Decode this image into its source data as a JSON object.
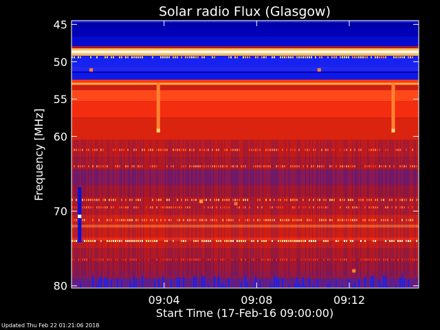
{
  "chart_data": {
    "type": "heatmap",
    "title": "Solar radio Flux (Glasgow)",
    "ylabel": "Frequency [MHz]",
    "xlabel": "Start Time (17-Feb-16 09:00:00)",
    "x_unit": "minutes after 09:00:00",
    "xlim": [
      0,
      15
    ],
    "ylim": [
      44.5,
      80.3
    ],
    "y_inverted": true,
    "y_ticks": [
      {
        "value": 45,
        "label": "45"
      },
      {
        "value": 50,
        "label": "50"
      },
      {
        "value": 55,
        "label": "55"
      },
      {
        "value": 60,
        "label": "60"
      },
      {
        "value": 70,
        "label": "70"
      },
      {
        "value": 80,
        "label": "80"
      }
    ],
    "x_ticks": [
      {
        "value": 4,
        "label": "09:04"
      },
      {
        "value": 8,
        "label": "09:08"
      },
      {
        "value": 12,
        "label": "09:12"
      }
    ],
    "colormap": [
      "#000060",
      "#0000c0",
      "#1a2aff",
      "#5020a0",
      "#a01830",
      "#d02010",
      "#ff3010",
      "#ff8030",
      "#ffe070",
      "#ffffff"
    ],
    "bands": [
      {
        "y0": 44.5,
        "y1": 44.8,
        "level": 0.18
      },
      {
        "y0": 44.8,
        "y1": 45.3,
        "level": 0.08
      },
      {
        "y0": 45.3,
        "y1": 46.6,
        "level": 0.1
      },
      {
        "y0": 46.6,
        "y1": 47.9,
        "level": 0.14
      },
      {
        "y0": 47.9,
        "y1": 48.2,
        "level": 0.45
      },
      {
        "y0": 48.2,
        "y1": 48.5,
        "level": 0.85
      },
      {
        "y0": 48.5,
        "y1": 48.9,
        "level": 0.98
      },
      {
        "y0": 48.9,
        "y1": 49.2,
        "level": 0.85
      },
      {
        "y0": 49.2,
        "y1": 50.6,
        "level": 0.2
      },
      {
        "y0": 50.6,
        "y1": 51.3,
        "level": 0.24
      },
      {
        "y0": 51.3,
        "y1": 51.5,
        "level": 0.12
      },
      {
        "y0": 51.5,
        "y1": 52.4,
        "level": 0.18
      },
      {
        "y0": 52.4,
        "y1": 52.8,
        "level": 0.68
      },
      {
        "y0": 52.8,
        "y1": 53.1,
        "level": 0.82
      },
      {
        "y0": 53.1,
        "y1": 53.8,
        "level": 0.55
      },
      {
        "y0": 53.8,
        "y1": 55.3,
        "level": 0.7
      },
      {
        "y0": 55.3,
        "y1": 57.5,
        "level": 0.64
      },
      {
        "y0": 57.5,
        "y1": 60.5,
        "level": 0.58
      },
      {
        "y0": 60.5,
        "y1": 62.8,
        "level": 0.52
      },
      {
        "y0": 62.8,
        "y1": 64.5,
        "level": 0.48
      },
      {
        "y0": 64.5,
        "y1": 66.5,
        "level": 0.4
      },
      {
        "y0": 66.5,
        "y1": 68.0,
        "level": 0.45
      },
      {
        "y0": 68.0,
        "y1": 70.5,
        "level": 0.5
      },
      {
        "y0": 70.5,
        "y1": 71.8,
        "level": 0.58
      },
      {
        "y0": 71.8,
        "y1": 72.2,
        "level": 0.74
      },
      {
        "y0": 72.2,
        "y1": 73.5,
        "level": 0.56
      },
      {
        "y0": 73.5,
        "y1": 74.0,
        "level": 0.66
      },
      {
        "y0": 74.0,
        "y1": 75.0,
        "level": 0.55
      },
      {
        "y0": 75.0,
        "y1": 76.5,
        "level": 0.48
      },
      {
        "y0": 76.5,
        "y1": 78.0,
        "level": 0.44
      },
      {
        "y0": 78.0,
        "y1": 79.0,
        "level": 0.42
      },
      {
        "y0": 79.0,
        "y1": 80.3,
        "level": 0.36
      }
    ],
    "speckle_rows": [
      {
        "freq": 49.4,
        "level": 0.85
      },
      {
        "freq": 61.8,
        "level": 0.72
      },
      {
        "freq": 64.0,
        "level": 0.72
      },
      {
        "freq": 68.5,
        "level": 0.78
      },
      {
        "freq": 69.5,
        "level": 0.7
      },
      {
        "freq": 71.2,
        "level": 0.78
      },
      {
        "freq": 74.0,
        "level": 0.9
      },
      {
        "freq": 76.5,
        "level": 0.62
      }
    ],
    "vertical_features": [
      {
        "time": 0.35,
        "f0": 66.8,
        "f1": 74.2,
        "level": 0.15
      },
      {
        "time": 3.75,
        "f0": 52.8,
        "f1": 59.5,
        "level": 0.78
      },
      {
        "time": 13.9,
        "f0": 52.8,
        "f1": 59.5,
        "level": 0.78
      }
    ],
    "hotspots": [
      {
        "time": 0.35,
        "freq": 70.7,
        "level": 1.0
      },
      {
        "time": 3.75,
        "freq": 59.2,
        "level": 0.88
      },
      {
        "time": 13.9,
        "freq": 59.2,
        "level": 0.88
      },
      {
        "time": 0.85,
        "freq": 51.1,
        "level": 0.78
      },
      {
        "time": 10.7,
        "freq": 51.1,
        "level": 0.78
      },
      {
        "time": 12.2,
        "freq": 78.0,
        "level": 0.78
      },
      {
        "time": 5.6,
        "freq": 68.7,
        "level": 0.8
      },
      {
        "time": 7.1,
        "freq": 69.0,
        "level": 0.75
      }
    ],
    "background_specks": {
      "level": 0.2,
      "low_band_f0": 78.8,
      "low_band_f1": 80.3
    }
  },
  "footer": {
    "updated": "Updated Thu Feb 22 01:21:06 2018"
  }
}
